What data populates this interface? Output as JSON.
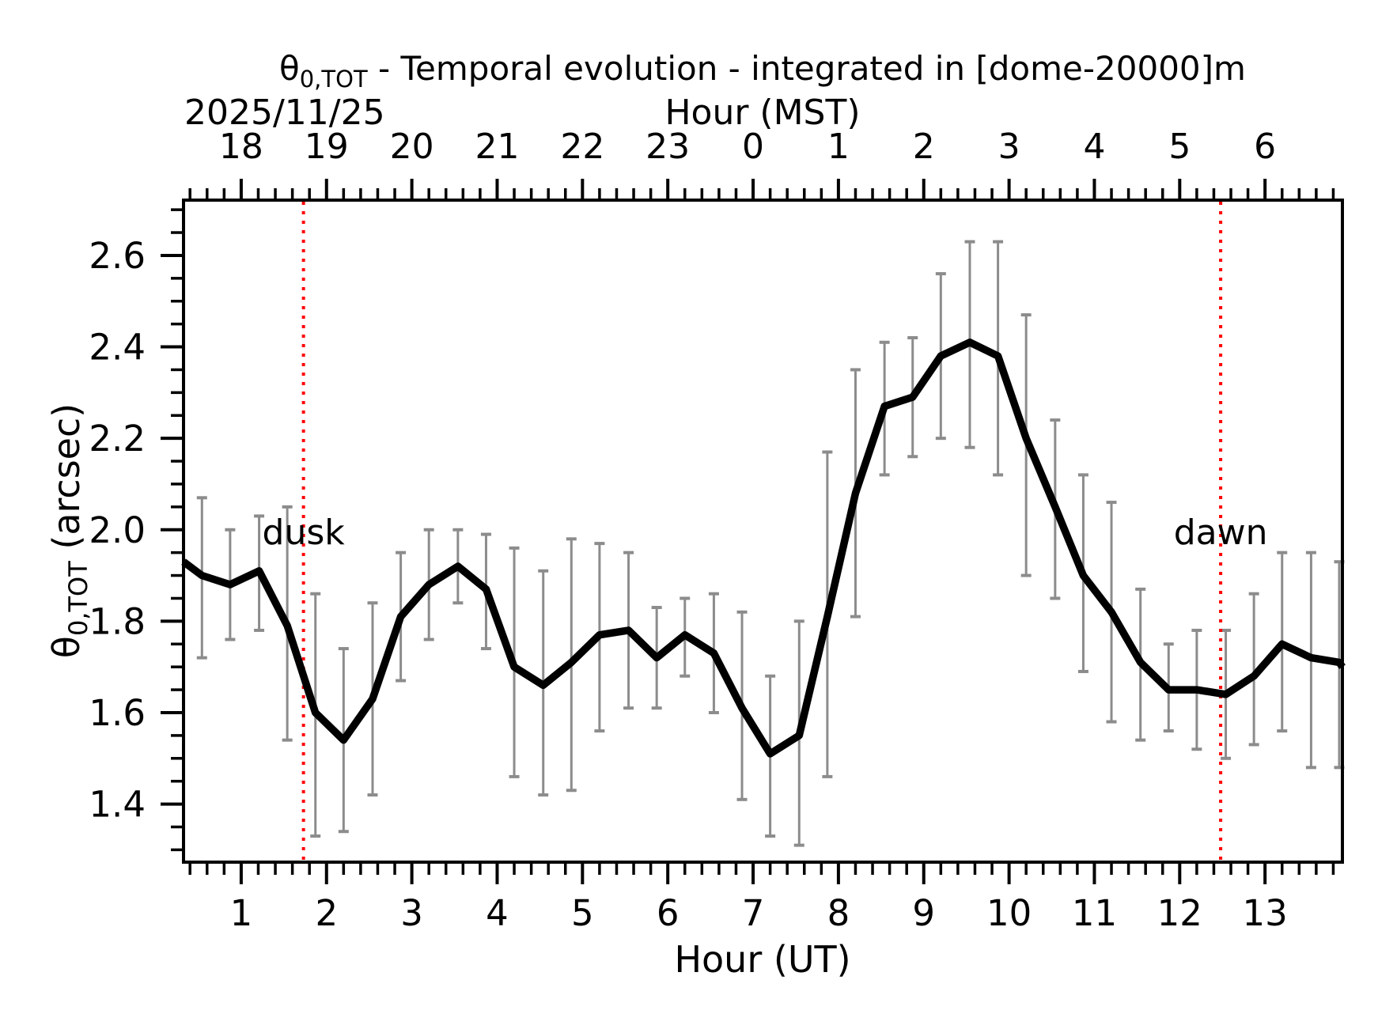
{
  "title": {
    "theta": "θ",
    "theta_sub": "0,TOT",
    "rest": " - Temporal evolution - integrated in [dome-20000]m"
  },
  "date_label": "2025/11/25",
  "top_axis": {
    "label": "Hour (MST)",
    "tick_labels": [
      "18",
      "19",
      "20",
      "21",
      "22",
      "23",
      "0",
      "1",
      "2",
      "3",
      "4",
      "5",
      "6"
    ],
    "tick_positions_ut": [
      1,
      2,
      3,
      4,
      5,
      6,
      7,
      8,
      9,
      10,
      11,
      12,
      13
    ]
  },
  "bottom_axis": {
    "label": "Hour (UT)",
    "tick_labels": [
      "1",
      "2",
      "3",
      "4",
      "5",
      "6",
      "7",
      "8",
      "9",
      "10",
      "11",
      "12",
      "13"
    ],
    "tick_positions": [
      1,
      2,
      3,
      4,
      5,
      6,
      7,
      8,
      9,
      10,
      11,
      12,
      13
    ]
  },
  "y_axis": {
    "theta": "θ",
    "theta_sub": "0,TOT",
    "rest": " (arcsec)",
    "tick_labels": [
      "1.4",
      "1.6",
      "1.8",
      "2.0",
      "2.2",
      "2.4",
      "2.6"
    ],
    "tick_values": [
      1.4,
      1.6,
      1.8,
      2.0,
      2.2,
      2.4,
      2.6
    ]
  },
  "annotations": {
    "dusk": {
      "label": "dusk",
      "hour": 1.73
    },
    "dawn": {
      "label": "dawn",
      "hour": 12.48
    }
  },
  "colors": {
    "line": "#000000",
    "error_bar": "#8c8c8c",
    "annotation_red": "#ff0000",
    "axis": "#000000"
  },
  "chart_data": {
    "type": "line",
    "title": "θ0,TOT - Temporal evolution - integrated in [dome-20000]m",
    "xlabel": "Hour (UT)",
    "xlabel_top": "Hour (MST)",
    "ylabel": "θ0,TOT (arcsec)",
    "date": "2025/11/25",
    "xlim": [
      0.324,
      13.907
    ],
    "ylim": [
      1.273,
      2.721
    ],
    "x_minor_step": 0.2,
    "y_minor_step": 0.05,
    "grid": false,
    "x": [
      0.54,
      0.87,
      1.21,
      1.54,
      1.87,
      2.2,
      2.54,
      2.87,
      3.2,
      3.54,
      3.87,
      4.2,
      4.54,
      4.87,
      5.2,
      5.54,
      5.87,
      6.2,
      6.54,
      6.87,
      7.2,
      7.54,
      7.87,
      8.2,
      8.54,
      8.87,
      9.2,
      9.54,
      9.87,
      10.2,
      10.54,
      10.87,
      11.2,
      11.54,
      11.87,
      12.2,
      12.54,
      12.87,
      13.2,
      13.54,
      13.87
    ],
    "y": [
      1.9,
      1.88,
      1.91,
      1.79,
      1.6,
      1.54,
      1.63,
      1.81,
      1.88,
      1.92,
      1.87,
      1.7,
      1.66,
      1.71,
      1.77,
      1.78,
      1.72,
      1.77,
      1.73,
      1.61,
      1.51,
      1.55,
      1.81,
      2.08,
      2.27,
      2.29,
      2.38,
      2.41,
      2.38,
      2.2,
      2.05,
      1.9,
      1.82,
      1.71,
      1.65,
      1.65,
      1.64,
      1.68,
      1.75,
      1.72,
      1.71
    ],
    "err_lo": [
      1.72,
      1.76,
      1.78,
      1.54,
      1.33,
      1.34,
      1.42,
      1.67,
      1.76,
      1.84,
      1.74,
      1.46,
      1.42,
      1.43,
      1.56,
      1.61,
      1.61,
      1.68,
      1.6,
      1.41,
      1.33,
      1.31,
      1.46,
      1.81,
      2.12,
      2.16,
      2.2,
      2.18,
      2.12,
      1.9,
      1.85,
      1.69,
      1.58,
      1.54,
      1.56,
      1.52,
      1.5,
      1.53,
      1.56,
      1.48,
      1.48
    ],
    "err_hi": [
      2.07,
      2.0,
      2.03,
      2.05,
      1.86,
      1.74,
      1.84,
      1.95,
      2.0,
      2.0,
      1.99,
      1.96,
      1.91,
      1.98,
      1.97,
      1.95,
      1.83,
      1.85,
      1.86,
      1.82,
      1.68,
      1.8,
      2.17,
      2.35,
      2.41,
      2.42,
      2.56,
      2.63,
      2.63,
      2.47,
      2.24,
      2.12,
      2.06,
      1.87,
      1.75,
      1.78,
      1.78,
      1.86,
      1.95,
      1.95,
      1.93
    ],
    "edge_start": {
      "x": 0.324,
      "y": 1.93
    },
    "edge_end": {
      "x": 13.907,
      "y": 1.7
    },
    "dusk_hour": 1.73,
    "dawn_hour": 12.48
  }
}
